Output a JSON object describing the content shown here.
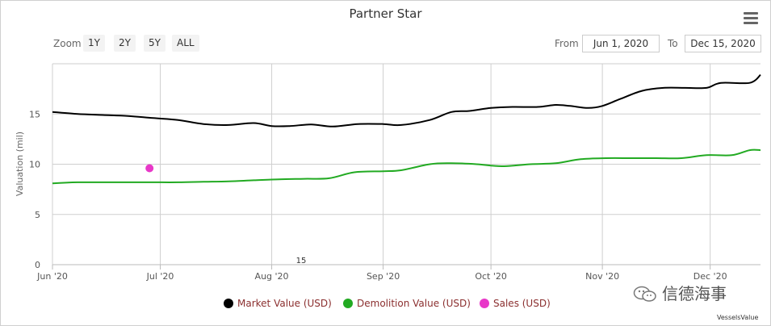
{
  "chart_data": {
    "type": "line",
    "title": "Partner Star",
    "ylabel": "Valuation (mil)",
    "xlabel": "",
    "ylim": [
      0,
      20
    ],
    "yticks": [
      0,
      5,
      10,
      15
    ],
    "xlim": [
      "2020-06-01",
      "2020-12-15"
    ],
    "xticks": [
      {
        "date": "2020-06-01",
        "label": "Jun '20"
      },
      {
        "date": "2020-07-01",
        "label": "Jul '20"
      },
      {
        "date": "2020-08-01",
        "label": "Aug '20"
      },
      {
        "date": "2020-09-01",
        "label": "Sep '20"
      },
      {
        "date": "2020-10-01",
        "label": "Oct '20"
      },
      {
        "date": "2020-11-01",
        "label": "Nov '20"
      },
      {
        "date": "2020-12-01",
        "label": "Dec '20"
      }
    ],
    "axis_annotation": "15",
    "grid": true,
    "legend_position": "bottom",
    "series": [
      {
        "name": "Market Value (USD)",
        "color": "#000000",
        "type": "line",
        "points": [
          [
            "2020-06-01",
            15.2
          ],
          [
            "2020-06-08",
            15.0
          ],
          [
            "2020-06-15",
            14.9
          ],
          [
            "2020-06-22",
            14.8
          ],
          [
            "2020-06-29",
            14.6
          ],
          [
            "2020-07-06",
            14.4
          ],
          [
            "2020-07-13",
            14.0
          ],
          [
            "2020-07-20",
            13.9
          ],
          [
            "2020-07-27",
            14.1
          ],
          [
            "2020-08-01",
            13.8
          ],
          [
            "2020-08-06",
            13.8
          ],
          [
            "2020-08-12",
            13.95
          ],
          [
            "2020-08-18",
            13.75
          ],
          [
            "2020-08-25",
            14.0
          ],
          [
            "2020-09-01",
            14.0
          ],
          [
            "2020-09-06",
            13.9
          ],
          [
            "2020-09-14",
            14.4
          ],
          [
            "2020-09-20",
            15.2
          ],
          [
            "2020-09-25",
            15.3
          ],
          [
            "2020-10-01",
            15.6
          ],
          [
            "2020-10-07",
            15.7
          ],
          [
            "2020-10-14",
            15.7
          ],
          [
            "2020-10-19",
            15.9
          ],
          [
            "2020-10-23",
            15.8
          ],
          [
            "2020-10-28",
            15.6
          ],
          [
            "2020-11-01",
            15.8
          ],
          [
            "2020-11-06",
            16.5
          ],
          [
            "2020-11-12",
            17.3
          ],
          [
            "2020-11-18",
            17.6
          ],
          [
            "2020-11-24",
            17.6
          ],
          [
            "2020-11-30",
            17.6
          ],
          [
            "2020-12-04",
            18.1
          ],
          [
            "2020-12-12",
            18.1
          ],
          [
            "2020-12-15",
            18.9
          ]
        ]
      },
      {
        "name": "Demolition Value (USD)",
        "color": "#22aa22",
        "type": "line",
        "points": [
          [
            "2020-06-01",
            8.1
          ],
          [
            "2020-06-08",
            8.2
          ],
          [
            "2020-06-15",
            8.2
          ],
          [
            "2020-06-22",
            8.2
          ],
          [
            "2020-06-29",
            8.2
          ],
          [
            "2020-07-06",
            8.2
          ],
          [
            "2020-07-13",
            8.25
          ],
          [
            "2020-07-20",
            8.3
          ],
          [
            "2020-07-27",
            8.4
          ],
          [
            "2020-08-03",
            8.5
          ],
          [
            "2020-08-10",
            8.55
          ],
          [
            "2020-08-17",
            8.6
          ],
          [
            "2020-08-24",
            9.2
          ],
          [
            "2020-09-01",
            9.3
          ],
          [
            "2020-09-06",
            9.4
          ],
          [
            "2020-09-14",
            10.0
          ],
          [
            "2020-09-20",
            10.1
          ],
          [
            "2020-09-27",
            10.0
          ],
          [
            "2020-10-04",
            9.8
          ],
          [
            "2020-10-12",
            10.0
          ],
          [
            "2020-10-19",
            10.1
          ],
          [
            "2020-10-26",
            10.5
          ],
          [
            "2020-11-02",
            10.6
          ],
          [
            "2020-11-09",
            10.6
          ],
          [
            "2020-11-16",
            10.6
          ],
          [
            "2020-11-23",
            10.6
          ],
          [
            "2020-11-30",
            10.9
          ],
          [
            "2020-12-07",
            10.9
          ],
          [
            "2020-12-12",
            11.4
          ],
          [
            "2020-12-15",
            11.4
          ]
        ]
      },
      {
        "name": "Sales (USD)",
        "color": "#e838c8",
        "type": "scatter",
        "points": [
          [
            "2020-06-28",
            9.6
          ]
        ]
      }
    ]
  },
  "toolbar": {
    "zoom_label": "Zoom",
    "zoom_buttons": [
      "1Y",
      "2Y",
      "5Y",
      "ALL"
    ],
    "from_label": "From",
    "from_value": "Jun 1, 2020",
    "to_label": "To",
    "to_value": "Dec 15, 2020"
  },
  "credit": "VesselsValue",
  "watermark": "信德海事"
}
